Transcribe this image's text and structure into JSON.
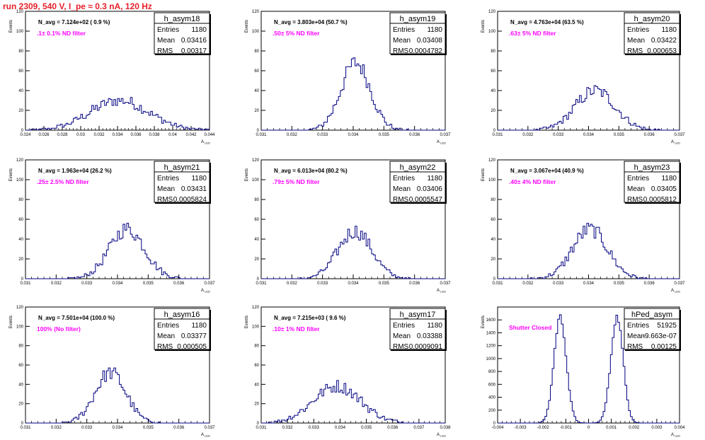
{
  "run_title": "run 2309,   540 V, I_pe ≈ 0.3 nA, 120 Hz",
  "colors": {
    "histogram": "#000080",
    "filter_label": "#ff00ff",
    "title": "#e8202a"
  },
  "chart_data": [
    {
      "type": "bar",
      "name": "h_asym18",
      "ylabel": "Events",
      "xlabel": "A_LED",
      "xlim": [
        0.024,
        0.044
      ],
      "ylim": [
        0,
        120
      ],
      "xticks": [
        "0.024",
        "0.026",
        "0.028",
        "0.03",
        "0.032",
        "0.034",
        "0.036",
        "0.038",
        "0.04",
        "0.042",
        "0.044"
      ],
      "yticks": [
        "0",
        "20",
        "40",
        "60",
        "80",
        "100",
        "120"
      ],
      "n_avg": "N_avg = 7.124e+02 ( 0.9 %)",
      "filter": ".1± 0.1% ND filter",
      "stats": [
        [
          "Entries",
          "1180"
        ],
        [
          "Mean",
          "0.03416"
        ],
        [
          "RMS",
          "0.00317"
        ]
      ],
      "center": 0.0342,
      "sigma": 0.0032,
      "peak": 30
    },
    {
      "type": "bar",
      "name": "h_asym19",
      "ylabel": "Events",
      "xlabel": "A_LED",
      "xlim": [
        0.031,
        0.037
      ],
      "ylim": [
        0,
        120
      ],
      "xticks": [
        "0.031",
        "0.032",
        "0.033",
        "0.034",
        "0.035",
        "0.036",
        "0.037"
      ],
      "yticks": [
        "0",
        "20",
        "40",
        "60",
        "80",
        "100",
        "120"
      ],
      "n_avg": "N_avg = 3.803e+04 (50.7 %)",
      "filter": ".50± 5% ND filter",
      "stats": [
        [
          "Entries",
          "1180"
        ],
        [
          "Mean",
          "0.03408"
        ],
        [
          "RMS",
          "0.0004782"
        ]
      ],
      "center": 0.03408,
      "sigma": 0.00048,
      "peak": 68
    },
    {
      "type": "bar",
      "name": "h_asym20",
      "ylabel": "Events",
      "xlabel": "A_LED",
      "xlim": [
        0.031,
        0.037
      ],
      "ylim": [
        0,
        120
      ],
      "xticks": [
        "0.031",
        "0.032",
        "0.033",
        "0.034",
        "0.035",
        "0.036",
        "0.037"
      ],
      "yticks": [
        "0",
        "20",
        "40",
        "60",
        "80",
        "100",
        "120"
      ],
      "n_avg": "N_avg = 4.763e+04 (63.5 %)",
      "filter": ".63± 5% ND filter",
      "stats": [
        [
          "Entries",
          "1180"
        ],
        [
          "Mean",
          "0.03422"
        ],
        [
          "RMS",
          "0.000653"
        ]
      ],
      "center": 0.03422,
      "sigma": 0.00065,
      "peak": 40
    },
    {
      "type": "bar",
      "name": "h_asym21",
      "ylabel": "Events",
      "xlabel": "A_LED",
      "xlim": [
        0.031,
        0.037
      ],
      "ylim": [
        0,
        120
      ],
      "xticks": [
        "0.031",
        "0.032",
        "0.033",
        "0.034",
        "0.035",
        "0.036",
        "0.037"
      ],
      "yticks": [
        "0",
        "20",
        "40",
        "60",
        "80",
        "100",
        "120"
      ],
      "n_avg": "N_avg = 1.963e+04 (26.2 %)",
      "filter": ".25± 2.5% ND filter",
      "stats": [
        [
          "Entries",
          "1180"
        ],
        [
          "Mean",
          "0.03431"
        ],
        [
          "RMS",
          "0.0005824"
        ]
      ],
      "center": 0.03431,
      "sigma": 0.00058,
      "peak": 50
    },
    {
      "type": "bar",
      "name": "h_asym22",
      "ylabel": "Events",
      "xlabel": "A_LED",
      "xlim": [
        0.031,
        0.037
      ],
      "ylim": [
        0,
        120
      ],
      "xticks": [
        "0.031",
        "0.032",
        "0.033",
        "0.034",
        "0.035",
        "0.036",
        "0.037"
      ],
      "yticks": [
        "0",
        "20",
        "40",
        "60",
        "80",
        "100",
        "120"
      ],
      "n_avg": "N_avg = 6.013e+04 (80.2 %)",
      "filter": ".79± 5% ND filter",
      "stats": [
        [
          "Entries",
          "1180"
        ],
        [
          "Mean",
          "0.03406"
        ],
        [
          "RMS",
          "0.0005547"
        ]
      ],
      "center": 0.03406,
      "sigma": 0.00055,
      "peak": 48
    },
    {
      "type": "bar",
      "name": "h_asym23",
      "ylabel": "Events",
      "xlabel": "A_LED",
      "xlim": [
        0.031,
        0.037
      ],
      "ylim": [
        0,
        120
      ],
      "xticks": [
        "0.031",
        "0.032",
        "0.033",
        "0.034",
        "0.035",
        "0.036",
        "0.037"
      ],
      "yticks": [
        "0",
        "20",
        "40",
        "60",
        "80",
        "100",
        "120"
      ],
      "n_avg": "N_avg = 3.067e+04 (40.9 %)",
      "filter": ".40± 4% ND filter",
      "stats": [
        [
          "Entries",
          "1180"
        ],
        [
          "Mean",
          "0.03405"
        ],
        [
          "RMS",
          "0.0005812"
        ]
      ],
      "center": 0.03405,
      "sigma": 0.00058,
      "peak": 50
    },
    {
      "type": "bar",
      "name": "h_asym16",
      "ylabel": "Events",
      "xlabel": "A_LED",
      "xlim": [
        0.031,
        0.037
      ],
      "ylim": [
        0,
        120
      ],
      "xticks": [
        "0.031",
        "0.032",
        "0.033",
        "0.034",
        "0.035",
        "0.036",
        "0.037"
      ],
      "yticks": [
        "0",
        "20",
        "40",
        "60",
        "80",
        "100",
        "120"
      ],
      "n_avg": "N_avg = 7.501e+04 (100.0 %)",
      "filter": "100% (No filter)",
      "stats": [
        [
          "Entries",
          "1180"
        ],
        [
          "Mean",
          "0.03377"
        ],
        [
          "RMS",
          "0.000505"
        ]
      ],
      "center": 0.03377,
      "sigma": 0.0005,
      "peak": 52
    },
    {
      "type": "bar",
      "name": "h_asym17",
      "ylabel": "Events",
      "xlabel": "A_LED",
      "xlim": [
        0.031,
        0.038
      ],
      "ylim": [
        0,
        120
      ],
      "xticks": [
        "0.031",
        "0.032",
        "0.033",
        "0.034",
        "0.035",
        "0.036",
        "0.037",
        "0.038"
      ],
      "yticks": [
        "0",
        "20",
        "40",
        "60",
        "80",
        "100",
        "120"
      ],
      "n_avg": "N_avg = 7.215e+03 ( 9.6 %)",
      "filter": ".10± 1% ND filter",
      "stats": [
        [
          "Entries",
          "1180"
        ],
        [
          "Mean",
          "0.03388"
        ],
        [
          "RMS",
          "0.0009091"
        ]
      ],
      "center": 0.03388,
      "sigma": 0.00091,
      "peak": 38
    },
    {
      "type": "bar",
      "name": "hPed_asym",
      "ylabel": "Events",
      "xlabel": "A_LED",
      "xlim": [
        -0.004,
        0.004
      ],
      "ylim": [
        0,
        1800
      ],
      "xticks": [
        "-0.004",
        "-0.003",
        "-0.002",
        "-0.001",
        "0",
        "0.001",
        "0.002",
        "0.003",
        "0.004"
      ],
      "yticks": [
        "0",
        "200",
        "400",
        "600",
        "800",
        "1000",
        "1200",
        "1400",
        "1600"
      ],
      "n_avg": "",
      "filter": "Shutter Closed",
      "stats": [
        [
          "Entries",
          "51925"
        ],
        [
          "Mean",
          "-9.663e-07"
        ],
        [
          "RMS",
          "0.00125"
        ]
      ],
      "bimodal": true,
      "center": 0.00125,
      "sigma": 0.00027,
      "peak": 1650
    }
  ]
}
